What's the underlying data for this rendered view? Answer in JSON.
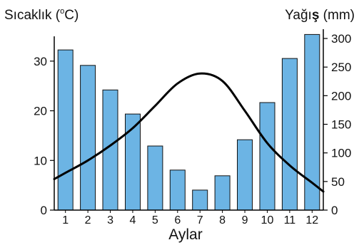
{
  "chart_data": {
    "type": "bar+line",
    "categories": [
      "1",
      "2",
      "3",
      "4",
      "5",
      "6",
      "7",
      "8",
      "9",
      "10",
      "11",
      "12"
    ],
    "xlabel": "Aylar",
    "bar_series": {
      "name": "Yağış (mm)",
      "axis": "right",
      "values": [
        280,
        253,
        210,
        168,
        112,
        70,
        35,
        60,
        123,
        188,
        265,
        307
      ],
      "color": "#6cb4e4"
    },
    "line_series": {
      "name": "Sıcaklık (°C)",
      "axis": "left",
      "values": [
        7.5,
        10,
        13,
        16.5,
        21,
        25.5,
        27.5,
        26,
        20,
        13.5,
        9,
        5.5
      ],
      "color": "#000000"
    },
    "left_axis": {
      "title_prefix": "Sıcaklık (",
      "title_degree": "o",
      "title_suffix": "C)",
      "ylim": [
        0,
        37
      ],
      "ticks": [
        "0",
        "10",
        "20",
        "30"
      ]
    },
    "right_axis": {
      "title_prefix": "Yağı",
      "title_bold": "ş",
      "title_suffix": " (mm)",
      "ylim": [
        0,
        310
      ],
      "ticks": [
        "0",
        "50",
        "100",
        "150",
        "200",
        "250",
        "300"
      ]
    },
    "grid": false,
    "legend": "none"
  }
}
